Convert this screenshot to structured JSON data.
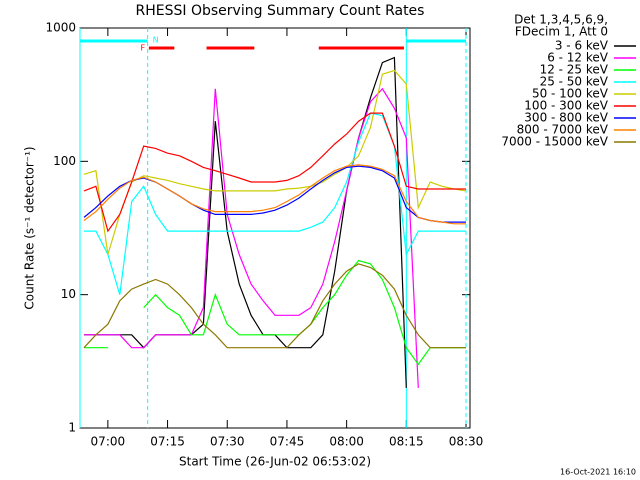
{
  "chart_data": {
    "type": "line",
    "title": "RHESSI Observing Summary Count Rates",
    "x_label": "Start Time (26-Jun-02 06:53:02)",
    "y_label": "Count Rate (s⁻¹ detector⁻¹)",
    "legend_header": [
      "Det 1,3,4,5,6,9,",
      "FDecim 1, Att 0"
    ],
    "footer": "16-Oct-2021 16:10",
    "log_y": true,
    "xlim": [
      413,
      511
    ],
    "ylim": [
      1,
      1000
    ],
    "yticks": [
      1,
      10,
      100,
      1000
    ],
    "xticks": [
      {
        "value": 420,
        "label": "07:00"
      },
      {
        "value": 435,
        "label": "07:15"
      },
      {
        "value": 450,
        "label": "07:30"
      },
      {
        "value": 465,
        "label": "07:45"
      },
      {
        "value": 480,
        "label": "08:00"
      },
      {
        "value": 495,
        "label": "08:15"
      },
      {
        "value": 510,
        "label": "08:30"
      }
    ],
    "annotations": {
      "flare_label": "F",
      "night_label": "N",
      "night_color": "#00ffff",
      "flare_color": "#ff0000",
      "night_intervals": [
        [
          413,
          430
        ],
        [
          495,
          510
        ]
      ],
      "flare_intervals": [
        [
          430.3,
          436.7
        ],
        [
          444.8,
          456.8
        ],
        [
          473,
          494.4
        ]
      ]
    },
    "x": [
      414,
      417,
      420,
      423,
      426,
      429,
      432,
      435,
      438,
      441,
      444,
      447,
      450,
      453,
      456,
      459,
      462,
      465,
      468,
      471,
      474,
      477,
      480,
      483,
      486,
      489,
      492,
      495,
      498,
      501,
      504,
      507,
      510
    ],
    "series": [
      {
        "name": "3 - 6 keV",
        "color": "#000000",
        "values": [
          5,
          5,
          5,
          5,
          5,
          4,
          5,
          5,
          5,
          5,
          6,
          200,
          30,
          12,
          7,
          5,
          5,
          4,
          4,
          4,
          5,
          15,
          60,
          150,
          300,
          550,
          600,
          2,
          null,
          null,
          null,
          null,
          null
        ]
      },
      {
        "name": "6 - 12 keV",
        "color": "#ff00ff",
        "values": [
          5,
          5,
          5,
          5,
          4,
          4,
          5,
          5,
          5,
          5,
          8,
          350,
          40,
          20,
          12,
          9,
          7,
          7,
          7,
          8,
          12,
          25,
          60,
          150,
          280,
          350,
          250,
          150,
          2,
          null,
          null,
          null,
          null
        ]
      },
      {
        "name": "12 - 25 keV",
        "color": "#00ff00",
        "values": [
          4,
          4,
          4,
          null,
          null,
          8,
          10,
          8,
          7,
          5,
          5,
          10,
          6,
          5,
          5,
          5,
          5,
          5,
          5,
          6,
          8,
          10,
          14,
          18,
          17,
          13,
          8,
          4,
          3,
          4,
          4,
          4,
          4
        ]
      },
      {
        "name": "25 - 50 keV",
        "color": "#00ffff",
        "values": [
          30,
          30,
          20,
          10,
          50,
          65,
          40,
          30,
          30,
          30,
          30,
          30,
          30,
          30,
          30,
          30,
          30,
          30,
          30,
          32,
          35,
          45,
          70,
          140,
          230,
          220,
          130,
          20,
          30,
          30,
          30,
          30,
          30
        ]
      },
      {
        "name": "50 - 100 keV",
        "color": "#cccc00",
        "values": [
          80,
          85,
          20,
          40,
          70,
          78,
          75,
          72,
          68,
          65,
          62,
          60,
          60,
          60,
          60,
          60,
          60,
          62,
          63,
          65,
          70,
          80,
          90,
          110,
          180,
          450,
          480,
          380,
          45,
          70,
          65,
          62,
          60
        ]
      },
      {
        "name": "100 - 300 keV",
        "color": "#ff0000",
        "values": [
          60,
          65,
          30,
          40,
          70,
          130,
          125,
          115,
          110,
          100,
          90,
          85,
          80,
          75,
          70,
          70,
          70,
          72,
          78,
          90,
          110,
          135,
          160,
          200,
          230,
          230,
          130,
          65,
          62,
          62,
          62,
          62,
          62
        ]
      },
      {
        "name": "300 - 800 keV",
        "color": "#0000ff",
        "values": [
          38,
          45,
          55,
          65,
          72,
          75,
          70,
          62,
          55,
          48,
          43,
          40,
          40,
          40,
          40,
          41,
          43,
          47,
          53,
          62,
          72,
          82,
          90,
          92,
          90,
          85,
          75,
          45,
          38,
          36,
          35,
          35,
          35
        ]
      },
      {
        "name": "800 - 7000 keV",
        "color": "#ff8000",
        "values": [
          36,
          42,
          52,
          63,
          72,
          76,
          70,
          62,
          55,
          48,
          44,
          42,
          42,
          42,
          42,
          43,
          45,
          50,
          56,
          65,
          75,
          85,
          92,
          94,
          92,
          87,
          78,
          50,
          38,
          36,
          35,
          34,
          34
        ]
      },
      {
        "name": "7000 - 15000 keV",
        "color": "#8c7800",
        "values": [
          4,
          5,
          6,
          9,
          11,
          12,
          13,
          12,
          10,
          8,
          6,
          5,
          4,
          4,
          4,
          4,
          4,
          4,
          5,
          6,
          9,
          12,
          15,
          17,
          16,
          14,
          11,
          7,
          5,
          4,
          4,
          4,
          4
        ]
      }
    ]
  }
}
